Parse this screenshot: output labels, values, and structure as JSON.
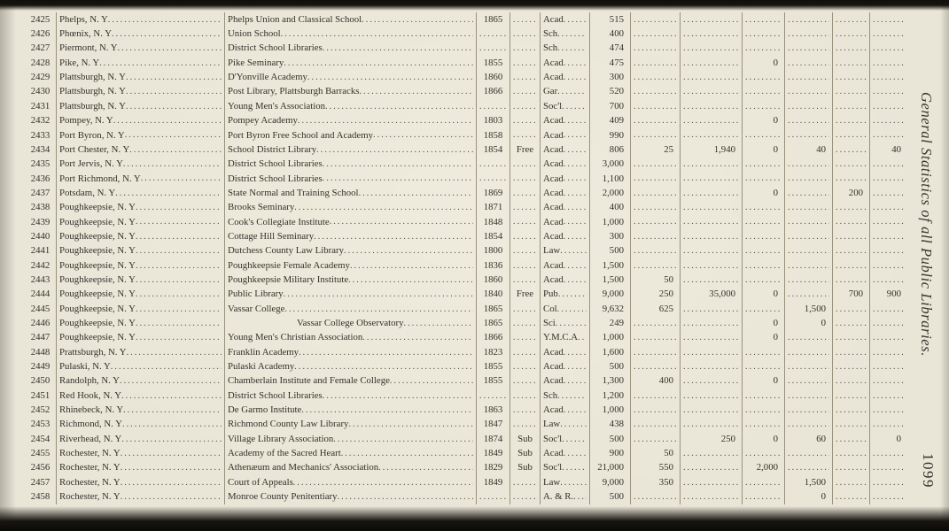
{
  "page": {
    "side_title": "General Statistics of all Public Libraries.",
    "page_number": "1099"
  },
  "table": {
    "rows": [
      {
        "no": "2425",
        "place": "Phelps, N. Y",
        "library": "Phelps Union and Classical School",
        "year": "1865",
        "terms": "",
        "cls": "Acad",
        "vols": "515"
      },
      {
        "no": "2426",
        "place": "Phœnix, N. Y",
        "library": "Union School",
        "year": "",
        "terms": "",
        "cls": "Sch",
        "vols": "400"
      },
      {
        "no": "2427",
        "place": "Piermont, N. Y",
        "library": "District School Libraries",
        "year": "",
        "terms": "",
        "cls": "Sch",
        "vols": "474"
      },
      {
        "no": "2428",
        "place": "Pike, N. Y",
        "library": "Pike Seminary",
        "year": "1855",
        "terms": "",
        "cls": "Acad",
        "vols": "475",
        "c3": "0"
      },
      {
        "no": "2429",
        "place": "Plattsburgh, N. Y",
        "library": "D'Yonville Academy",
        "year": "1860",
        "terms": "",
        "cls": "Acad",
        "vols": "300"
      },
      {
        "no": "2430",
        "place": "Plattsburgh, N. Y",
        "library": "Post Library, Plattsburgh Barracks",
        "year": "1866",
        "terms": "",
        "cls": "Gar",
        "vols": "520"
      },
      {
        "no": "2431",
        "place": "Plattsburgh, N. Y",
        "library": "Young Men's Association",
        "year": "",
        "terms": "",
        "cls": "Soc'l",
        "vols": "700"
      },
      {
        "no": "2432",
        "place": "Pompey, N. Y",
        "library": "Pompey Academy",
        "year": "1803",
        "terms": "",
        "cls": "Acad",
        "vols": "409",
        "c3": "0"
      },
      {
        "no": "2433",
        "place": "Port Byron, N. Y",
        "library": "Port Byron Free School and Academy",
        "year": "1858",
        "terms": "",
        "cls": "Acad",
        "vols": "990"
      },
      {
        "no": "2434",
        "place": "Port Chester, N. Y",
        "library": "School District Library",
        "year": "1854",
        "terms": "Free",
        "cls": "Acad",
        "vols": "806",
        "c1": "25",
        "c2": "1,940",
        "c3": "0",
        "c4": "40",
        "c6": "40"
      },
      {
        "no": "2435",
        "place": "Port Jervis, N. Y",
        "library": "District School Libraries",
        "year": "",
        "terms": "",
        "cls": "Acad",
        "vols": "3,000"
      },
      {
        "no": "2436",
        "place": "Port Richmond, N. Y",
        "library": "District School Libraries",
        "year": "",
        "terms": "",
        "cls": "Acad",
        "vols": "1,100"
      },
      {
        "no": "2437",
        "place": "Potsdam, N. Y",
        "library": "State Normal and Training School",
        "year": "1869",
        "terms": "",
        "cls": "Acad",
        "vols": "2,000",
        "c3": "0",
        "c5": "200"
      },
      {
        "no": "2438",
        "place": "Poughkeepsie, N. Y",
        "library": "Brooks Seminary",
        "year": "1871",
        "terms": "",
        "cls": "Acad",
        "vols": "400"
      },
      {
        "no": "2439",
        "place": "Poughkeepsie, N. Y",
        "library": "Cook's Collegiate Institute",
        "year": "1848",
        "terms": "",
        "cls": "Acad",
        "vols": "1,000"
      },
      {
        "no": "2440",
        "place": "Poughkeepsie, N. Y",
        "library": "Cottage Hill Seminary",
        "year": "1854",
        "terms": "",
        "cls": "Acad",
        "vols": "300"
      },
      {
        "no": "2441",
        "place": "Poughkeepsie, N. Y",
        "library": "Dutchess County Law Library",
        "year": "1800",
        "terms": "",
        "cls": "Law",
        "vols": "500"
      },
      {
        "no": "2442",
        "place": "Poughkeepsie, N. Y",
        "library": "Poughkeepsie Female Academy",
        "year": "1836",
        "terms": "",
        "cls": "Acad",
        "vols": "1,500"
      },
      {
        "no": "2443",
        "place": "Poughkeepsie, N. Y",
        "library": "Poughkeepsie Military Institute",
        "year": "1860",
        "terms": "",
        "cls": "Acad",
        "vols": "1,500",
        "c1": "50"
      },
      {
        "no": "2444",
        "place": "Poughkeepsie, N. Y",
        "library": "Public Library",
        "year": "1840",
        "terms": "Free",
        "cls": "Pub",
        "vols": "9,000",
        "c1": "250",
        "c2": "35,000",
        "c3": "0",
        "c5": "700",
        "c6": "900"
      },
      {
        "no": "2445",
        "place": "Poughkeepsie, N. Y",
        "library": "Vassar College",
        "year": "1865",
        "terms": "",
        "cls": "Col",
        "vols": "9,632",
        "c1": "625",
        "c4": "1,500"
      },
      {
        "no": "2446",
        "place": "Poughkeepsie, N. Y",
        "library": "Vassar College Observatory",
        "year": "1865",
        "terms": "",
        "cls": "Sci",
        "vols": "249",
        "c3": "0",
        "c4": "0",
        "indent": true
      },
      {
        "no": "2447",
        "place": "Poughkeepsie, N. Y",
        "library": "Young Men's Christian Association",
        "year": "1866",
        "terms": "",
        "cls": "Y.M.C.A",
        "vols": "1,000",
        "c3": "0"
      },
      {
        "no": "2448",
        "place": "Prattsburgh, N. Y",
        "library": "Franklin Academy",
        "year": "1823",
        "terms": "",
        "cls": "Acad",
        "vols": "1,600"
      },
      {
        "no": "2449",
        "place": "Pulaski, N. Y",
        "library": "Pulaski Academy",
        "year": "1855",
        "terms": "",
        "cls": "Acad",
        "vols": "500"
      },
      {
        "no": "2450",
        "place": "Randolph, N. Y",
        "library": "Chamberlain Institute and Female College",
        "year": "1855",
        "terms": "",
        "cls": "Acad",
        "vols": "1,300",
        "c1": "400",
        "c3": "0"
      },
      {
        "no": "2451",
        "place": "Red Hook, N. Y",
        "library": "District School Libraries",
        "year": "",
        "terms": "",
        "cls": "Sch",
        "vols": "1,200"
      },
      {
        "no": "2452",
        "place": "Rhinebeck, N. Y",
        "library": "De Garmo Institute",
        "year": "1863",
        "terms": "",
        "cls": "Acad",
        "vols": "1,000"
      },
      {
        "no": "2453",
        "place": "Richmond, N. Y",
        "library": "Richmond County Law Library",
        "year": "1847",
        "terms": "",
        "cls": "Law",
        "vols": "438"
      },
      {
        "no": "2454",
        "place": "Riverhead, N. Y",
        "library": "Village Library Association",
        "year": "1874",
        "terms": "Sub",
        "cls": "Soc'l",
        "vols": "500",
        "c2": "250",
        "c3": "0",
        "c4": "60",
        "c6": "0"
      },
      {
        "no": "2455",
        "place": "Rochester, N. Y",
        "library": "Academy of the Sacred Heart",
        "year": "1849",
        "terms": "Sub",
        "cls": "Acad",
        "vols": "900",
        "c1": "50"
      },
      {
        "no": "2456",
        "place": "Rochester, N. Y",
        "library": "Athenæum and Mechanics' Association",
        "year": "1829",
        "terms": "Sub",
        "cls": "Soc'l",
        "vols": "21,000",
        "c1": "550",
        "c3": "2,000"
      },
      {
        "no": "2457",
        "place": "Rochester, N. Y",
        "library": "Court of Appeals",
        "year": "1849",
        "terms": "",
        "cls": "Law",
        "vols": "9,000",
        "c1": "350",
        "c4": "1,500"
      },
      {
        "no": "2458",
        "place": "Rochester, N. Y",
        "library": "Monroe County Penitentiary",
        "year": "",
        "terms": "",
        "cls": "A. & R.",
        "vols": "500",
        "c4": "0"
      }
    ]
  }
}
